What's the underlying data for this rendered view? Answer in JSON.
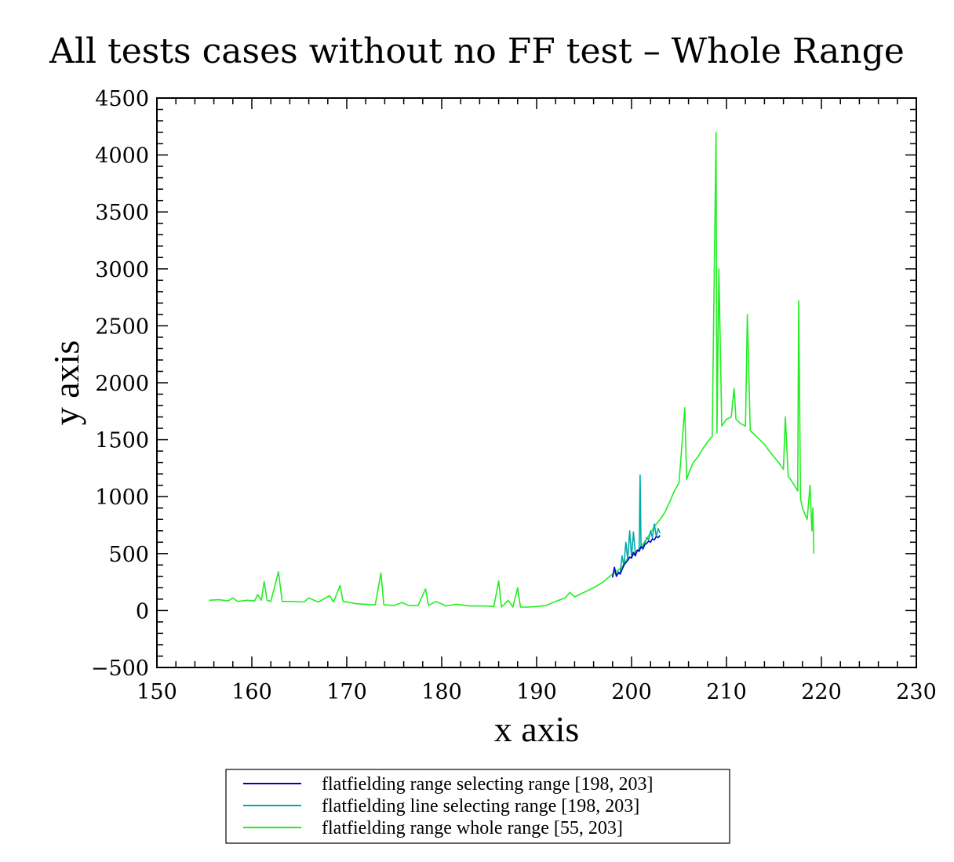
{
  "chart_data": {
    "type": "line",
    "title": "All tests cases without no FF test – Whole Range",
    "xlabel": "x axis",
    "ylabel": "y axis",
    "xlim": [
      150,
      230
    ],
    "ylim": [
      -500,
      4500
    ],
    "x_ticks": [
      150,
      160,
      170,
      180,
      190,
      200,
      210,
      220,
      230
    ],
    "y_ticks": [
      -500,
      0,
      500,
      1000,
      1500,
      2000,
      2500,
      3000,
      3500,
      4000,
      4500
    ],
    "x_tick_labels": [
      "150",
      "160",
      "170",
      "180",
      "190",
      "200",
      "210",
      "220",
      "230"
    ],
    "y_tick_labels": [
      "−500",
      "0",
      "500",
      "1000",
      "1500",
      "2000",
      "2500",
      "3000",
      "3500",
      "4000",
      "4500"
    ],
    "grid": false,
    "legend_position": "bottom-center",
    "series": [
      {
        "name": "flatfielding range selecting range [198, 203]",
        "color": "#0000cc",
        "x": [
          198.0,
          198.2,
          198.4,
          198.6,
          198.8,
          199.0,
          199.2,
          199.4,
          199.6,
          199.8,
          200.0,
          200.2,
          200.4,
          200.6,
          200.8,
          201.0,
          201.2,
          201.4,
          201.6,
          201.8,
          202.0,
          202.2,
          202.4,
          202.6,
          202.8,
          203.0
        ],
        "y": [
          290,
          380,
          300,
          330,
          320,
          360,
          400,
          420,
          440,
          470,
          460,
          510,
          480,
          530,
          520,
          560,
          540,
          580,
          590,
          610,
          600,
          630,
          620,
          650,
          640,
          660
        ]
      },
      {
        "name": "flatfielding line selecting range [198, 203]",
        "color": "#00aaaa",
        "x": [
          198.0,
          198.2,
          198.4,
          198.6,
          198.8,
          199.0,
          199.2,
          199.4,
          199.6,
          199.8,
          200.0,
          200.2,
          200.4,
          200.6,
          200.8,
          200.9,
          201.0,
          201.2,
          201.4,
          201.6,
          201.8,
          202.0,
          202.2,
          202.4,
          202.6,
          202.8,
          203.0
        ],
        "y": [
          300,
          370,
          310,
          340,
          330,
          480,
          390,
          600,
          450,
          700,
          470,
          690,
          500,
          520,
          540,
          1190,
          560,
          560,
          590,
          640,
          620,
          700,
          640,
          760,
          650,
          720,
          680
        ]
      },
      {
        "name": "flatfielding range whole range [55, 203]",
        "color": "#22ee22",
        "x": [
          155.5,
          156.5,
          157.5,
          158.0,
          158.5,
          159.5,
          160.3,
          160.6,
          161.0,
          161.3,
          161.6,
          162.0,
          162.8,
          163.2,
          164.0,
          165.5,
          166.0,
          167.0,
          168.2,
          168.6,
          169.3,
          169.6,
          170.0,
          171.0,
          172.0,
          173.0,
          173.6,
          173.9,
          175.0,
          175.8,
          176.5,
          177.5,
          178.3,
          178.6,
          179.4,
          180.5,
          181.5,
          183.0,
          184.5,
          185.5,
          186.0,
          186.3,
          187.0,
          187.5,
          188.0,
          188.3,
          189.0,
          190.0,
          191.0,
          192.0,
          193.0,
          193.5,
          194.0,
          195.0,
          196.0,
          197.0,
          198.0,
          199.0,
          199.5,
          200.0,
          200.5,
          201.0,
          201.5,
          202.0,
          202.5,
          203.0,
          203.5,
          204.0,
          204.5,
          205.0,
          205.6,
          205.8,
          206.0,
          206.5,
          207.0,
          207.5,
          208.0,
          208.5,
          208.9,
          209.0,
          209.2,
          209.5,
          210.0,
          210.5,
          210.8,
          211.0,
          211.5,
          212.0,
          212.2,
          212.5,
          213.0,
          213.5,
          214.0,
          214.5,
          215.0,
          215.5,
          216.0,
          216.2,
          216.5,
          217.0,
          217.5,
          217.6,
          217.8,
          218.0,
          218.5,
          218.8,
          219.0,
          219.1,
          219.2
        ],
        "y": [
          90,
          95,
          85,
          110,
          80,
          90,
          85,
          140,
          90,
          255,
          90,
          80,
          340,
          80,
          80,
          75,
          110,
          75,
          130,
          75,
          220,
          80,
          75,
          60,
          55,
          50,
          330,
          50,
          45,
          70,
          45,
          45,
          190,
          45,
          80,
          40,
          55,
          40,
          40,
          35,
          260,
          30,
          90,
          30,
          200,
          30,
          30,
          35,
          45,
          80,
          110,
          160,
          120,
          160,
          200,
          250,
          320,
          380,
          450,
          470,
          520,
          560,
          620,
          680,
          750,
          800,
          860,
          950,
          1050,
          1120,
          1780,
          1150,
          1200,
          1300,
          1350,
          1420,
          1480,
          1530,
          4200,
          1560,
          3000,
          1620,
          1680,
          1700,
          1950,
          1680,
          1640,
          1620,
          2600,
          1580,
          1540,
          1500,
          1460,
          1400,
          1350,
          1300,
          1240,
          1700,
          1180,
          1120,
          1050,
          2720,
          980,
          900,
          800,
          1100,
          700,
          900,
          500
        ]
      }
    ]
  }
}
